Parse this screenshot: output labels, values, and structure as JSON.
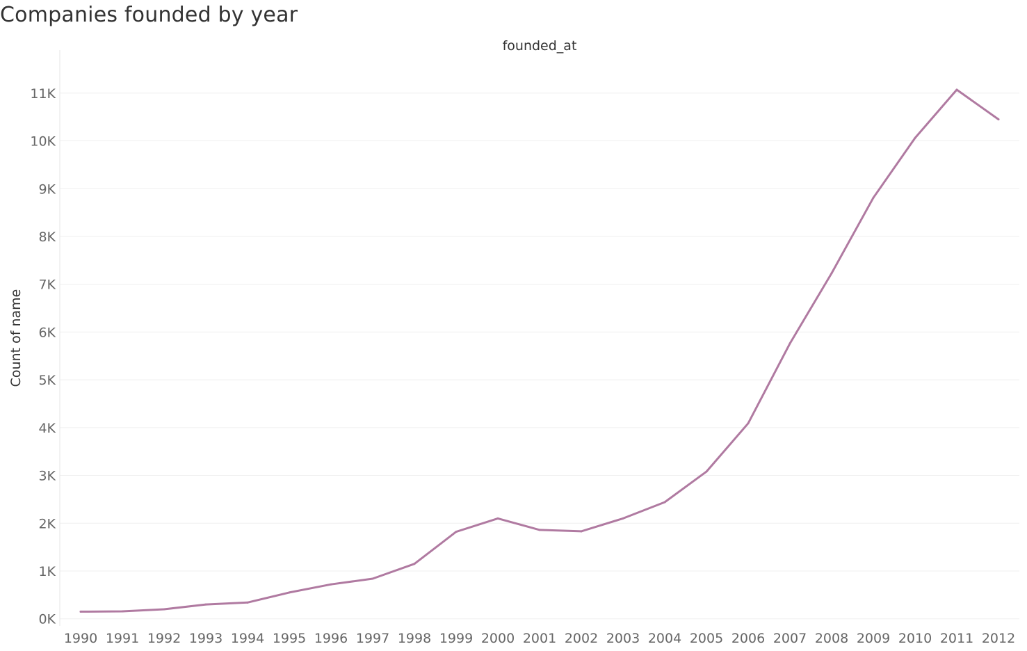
{
  "title": "Companies founded by year",
  "chart_data": {
    "type": "line",
    "title": "Companies founded by year",
    "xlabel": "founded_at",
    "ylabel": "Count of name",
    "x": [
      1990,
      1991,
      1992,
      1993,
      1994,
      1995,
      1996,
      1997,
      1998,
      1999,
      2000,
      2001,
      2002,
      2003,
      2004,
      2005,
      2006,
      2007,
      2008,
      2009,
      2010,
      2011,
      2012
    ],
    "x_tick_labels": [
      "1990",
      "1991",
      "1992",
      "1993",
      "1994",
      "1995",
      "1996",
      "1997",
      "1998",
      "1999",
      "2000",
      "2001",
      "2002",
      "2003",
      "2004",
      "2005",
      "2006",
      "2007",
      "2008",
      "2009",
      "2010",
      "2011",
      "2012"
    ],
    "series": [
      {
        "values": [
          150,
          155,
          200,
          300,
          340,
          550,
          720,
          840,
          1150,
          1820,
          2100,
          1860,
          1830,
          2100,
          2440,
          3080,
          4090,
          5760,
          7230,
          8810,
          10060,
          11070,
          10450
        ],
        "color": "#b07aa1"
      }
    ],
    "y_ticks": [
      0,
      1000,
      2000,
      3000,
      4000,
      5000,
      6000,
      7000,
      8000,
      9000,
      10000,
      11000
    ],
    "y_tick_labels": [
      "0K",
      "1K",
      "2K",
      "3K",
      "4K",
      "5K",
      "6K",
      "7K",
      "8K",
      "9K",
      "10K",
      "11K"
    ],
    "ylim": [
      -150,
      11900
    ],
    "grid": true,
    "legend": "none"
  }
}
